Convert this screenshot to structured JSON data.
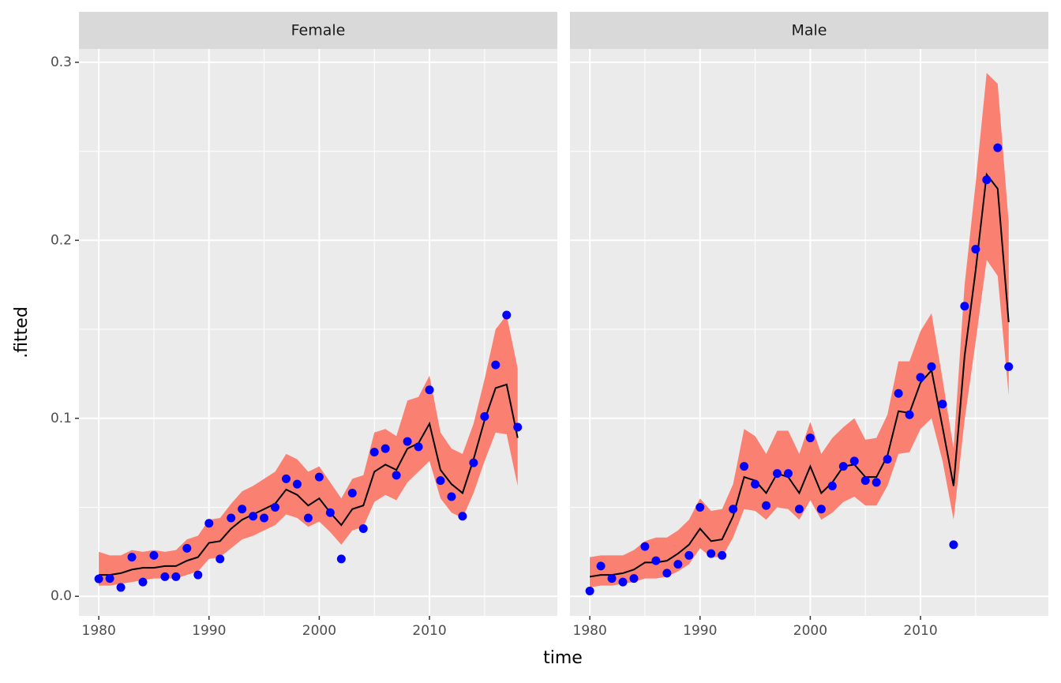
{
  "xlabel": "time",
  "ylabel": ".fitted",
  "chart_data": [
    {
      "type": "line",
      "title": "Female",
      "x": [
        1980,
        1981,
        1982,
        1983,
        1984,
        1985,
        1986,
        1987,
        1988,
        1989,
        1990,
        1991,
        1992,
        1993,
        1994,
        1995,
        1996,
        1997,
        1998,
        1999,
        2000,
        2001,
        2002,
        2003,
        2004,
        2005,
        2006,
        2007,
        2008,
        2009,
        2010,
        2011,
        2012,
        2013,
        2014,
        2015,
        2016,
        2017,
        2018
      ],
      "observed": {
        "color": "#0000ff",
        "values": [
          0.0098,
          0.01,
          0.005,
          0.022,
          0.008,
          0.023,
          0.011,
          0.011,
          0.027,
          0.012,
          0.041,
          0.021,
          0.044,
          0.049,
          0.045,
          0.044,
          0.05,
          0.066,
          0.063,
          0.044,
          0.067,
          0.047,
          0.021,
          0.058,
          0.038,
          0.081,
          0.083,
          0.068,
          0.087,
          0.084,
          0.116,
          0.065,
          0.056,
          0.045,
          0.075,
          0.101,
          0.13,
          0.158,
          0.095
        ]
      },
      "fitted": {
        "color": "#000000",
        "values": [
          0.012,
          0.012,
          0.013,
          0.015,
          0.016,
          0.016,
          0.017,
          0.017,
          0.02,
          0.022,
          0.03,
          0.031,
          0.038,
          0.043,
          0.046,
          0.049,
          0.052,
          0.06,
          0.057,
          0.051,
          0.055,
          0.047,
          0.04,
          0.049,
          0.051,
          0.07,
          0.074,
          0.071,
          0.083,
          0.086,
          0.097,
          0.071,
          0.063,
          0.058,
          0.077,
          0.099,
          0.117,
          0.119,
          0.089
        ]
      },
      "band": {
        "color": "#fa8072",
        "upper": [
          0.025,
          0.023,
          0.023,
          0.026,
          0.025,
          0.026,
          0.025,
          0.026,
          0.032,
          0.034,
          0.043,
          0.044,
          0.052,
          0.059,
          0.062,
          0.066,
          0.07,
          0.08,
          0.077,
          0.07,
          0.073,
          0.064,
          0.055,
          0.066,
          0.068,
          0.092,
          0.094,
          0.09,
          0.11,
          0.112,
          0.124,
          0.092,
          0.083,
          0.08,
          0.097,
          0.122,
          0.15,
          0.158,
          0.128
        ],
        "lower": [
          0.006,
          0.006,
          0.007,
          0.008,
          0.009,
          0.01,
          0.01,
          0.01,
          0.012,
          0.014,
          0.021,
          0.022,
          0.027,
          0.032,
          0.034,
          0.037,
          0.04,
          0.046,
          0.044,
          0.039,
          0.042,
          0.036,
          0.029,
          0.037,
          0.039,
          0.053,
          0.057,
          0.054,
          0.064,
          0.07,
          0.076,
          0.055,
          0.047,
          0.044,
          0.058,
          0.076,
          0.092,
          0.091,
          0.062
        ]
      },
      "xlim": [
        1978.2,
        2021.6
      ],
      "ylim": [
        -0.011,
        0.3075
      ],
      "xticks": [
        1980,
        1990,
        2000,
        2010
      ],
      "yticks": [
        {
          "value": 0,
          "label": "0.0"
        },
        0.1,
        0.2,
        0.3
      ],
      "grid": true
    },
    {
      "type": "line",
      "title": "Male",
      "x": [
        1980,
        1981,
        1982,
        1983,
        1984,
        1985,
        1986,
        1987,
        1988,
        1989,
        1990,
        1991,
        1992,
        1993,
        1994,
        1995,
        1996,
        1997,
        1998,
        1999,
        2000,
        2001,
        2002,
        2003,
        2004,
        2005,
        2006,
        2007,
        2008,
        2009,
        2010,
        2011,
        2012,
        2013,
        2014,
        2015,
        2016,
        2017,
        2018
      ],
      "observed": {
        "color": "#0000ff",
        "values": [
          0.003,
          0.017,
          0.01,
          0.008,
          0.01,
          0.028,
          0.02,
          0.013,
          0.018,
          0.023,
          0.05,
          0.024,
          0.023,
          0.049,
          0.073,
          0.063,
          0.051,
          0.069,
          0.069,
          0.049,
          0.089,
          0.049,
          0.062,
          0.073,
          0.076,
          0.065,
          0.064,
          0.077,
          0.114,
          0.102,
          0.123,
          0.129,
          0.108,
          0.029,
          0.163,
          0.195,
          0.234,
          0.252,
          0.129
        ]
      },
      "fitted": {
        "color": "#000000",
        "values": [
          0.011,
          0.012,
          0.012,
          0.013,
          0.015,
          0.019,
          0.019,
          0.02,
          0.024,
          0.029,
          0.038,
          0.031,
          0.032,
          0.045,
          0.067,
          0.065,
          0.058,
          0.069,
          0.067,
          0.058,
          0.073,
          0.058,
          0.064,
          0.073,
          0.074,
          0.067,
          0.067,
          0.079,
          0.104,
          0.103,
          0.12,
          0.127,
          0.095,
          0.062,
          0.135,
          0.183,
          0.237,
          0.229,
          0.154
        ]
      },
      "band": {
        "color": "#fa8072",
        "upper": [
          0.022,
          0.023,
          0.023,
          0.023,
          0.026,
          0.031,
          0.033,
          0.033,
          0.037,
          0.043,
          0.055,
          0.048,
          0.049,
          0.063,
          0.094,
          0.09,
          0.08,
          0.093,
          0.093,
          0.08,
          0.098,
          0.08,
          0.089,
          0.095,
          0.1,
          0.088,
          0.089,
          0.102,
          0.132,
          0.132,
          0.149,
          0.159,
          0.122,
          0.083,
          0.175,
          0.232,
          0.294,
          0.288,
          0.21
        ],
        "lower": [
          0.005,
          0.006,
          0.006,
          0.007,
          0.008,
          0.01,
          0.01,
          0.011,
          0.014,
          0.018,
          0.027,
          0.022,
          0.022,
          0.033,
          0.049,
          0.048,
          0.043,
          0.05,
          0.049,
          0.043,
          0.054,
          0.043,
          0.047,
          0.053,
          0.056,
          0.051,
          0.051,
          0.062,
          0.08,
          0.081,
          0.094,
          0.1,
          0.076,
          0.043,
          0.099,
          0.143,
          0.189,
          0.18,
          0.113
        ]
      },
      "xlim": [
        1978.2,
        2021.6
      ],
      "ylim": [
        -0.011,
        0.3075
      ],
      "xticks": [
        1980,
        1990,
        2000,
        2010
      ],
      "yticks": [
        {
          "value": 0,
          "label": "0.0"
        },
        0.1,
        0.2,
        0.3
      ],
      "grid": true
    }
  ]
}
